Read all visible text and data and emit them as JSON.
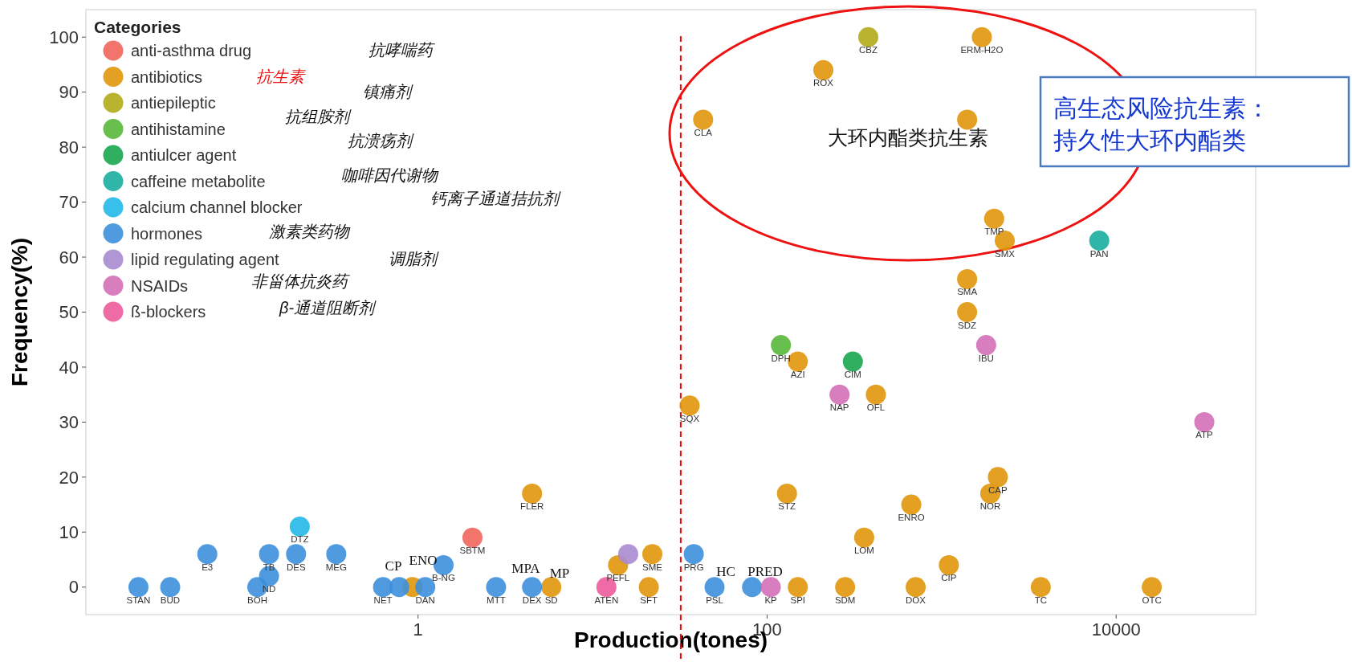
{
  "chart_data": {
    "type": "scatter",
    "xlabel": "Production(tones)",
    "ylabel": "Frequency(%)",
    "legend_title": "Categories",
    "legend": "top left",
    "marker": "circle",
    "log": "x",
    "xlim": [
      0.0125,
      63000
    ],
    "xticks": [
      1,
      100,
      10000
    ],
    "ylim": [
      -5,
      105
    ],
    "yticks": [
      0,
      10,
      20,
      30,
      40,
      50,
      60,
      70,
      80,
      90,
      100
    ],
    "ref_lines": [
      {
        "axis": "x",
        "value": 32,
        "color": "#ff0000",
        "line_style": "dashed"
      }
    ],
    "series": [
      {
        "name": "anti-asthma drug",
        "color": "#f0665c",
        "x": [
          2.05
        ],
        "values": [
          9
        ]
      },
      {
        "name": "antibiotics",
        "color": "#e0960a",
        "x": [
          0.93,
          5.8,
          4.5,
          14,
          22,
          21,
          150,
          280,
          710,
          1100,
          3700,
          16000,
          360,
          670,
          130,
          1900,
          2100,
          36,
          150,
          420,
          1400,
          1400,
          2000,
          2300,
          43,
          210,
          1700,
          1400
        ],
        "values": [
          0,
          0,
          17,
          4,
          6,
          0,
          0,
          0,
          0,
          4,
          0,
          0,
          9,
          15,
          17,
          17,
          20,
          33,
          41,
          35,
          50,
          56,
          67,
          63,
          85,
          94,
          100,
          85
        ]
      },
      {
        "name": "antiepileptic",
        "color": "#b3ab18",
        "x": [
          380
        ],
        "values": [
          100
        ]
      },
      {
        "name": "antihistamine",
        "color": "#58b83a",
        "x": [
          120
        ],
        "values": [
          44
        ]
      },
      {
        "name": "antiulcer agent",
        "color": "#1aa650",
        "x": [
          310
        ],
        "values": [
          41
        ]
      },
      {
        "name": "caffeine metabolite",
        "color": "#1aaea0",
        "x": [
          8000
        ],
        "values": [
          63
        ]
      },
      {
        "name": "calcium channel blocker",
        "color": "#22b8e8",
        "x": [
          0.21
        ],
        "values": [
          11
        ]
      },
      {
        "name": "hormones",
        "color": "#3d8fdc",
        "x": [
          0.025,
          0.038,
          0.062,
          0.14,
          0.2,
          0.12,
          0.14,
          0.34,
          0.63,
          0.78,
          1.1,
          1.4,
          2.8,
          4.5,
          38,
          50,
          82
        ],
        "values": [
          0,
          0,
          6,
          6,
          6,
          0,
          2,
          6,
          0,
          0,
          0,
          4,
          0,
          0,
          6,
          0,
          0
        ]
      },
      {
        "name": "lipid regulating agent",
        "color": "#a98bd2",
        "x": [
          16
        ],
        "values": [
          6
        ]
      },
      {
        "name": "NSAIDs",
        "color": "#d46fb6",
        "x": [
          105,
          260,
          1800,
          32000
        ],
        "values": [
          0,
          35,
          44,
          30
        ]
      },
      {
        "name": "ß-blockers",
        "color": "#ec5b9c",
        "x": [
          12
        ],
        "values": [
          0
        ]
      }
    ],
    "annotations": [
      {
        "text": "SBTM",
        "x": 2.05,
        "y": 9
      },
      {
        "text": "SD",
        "x": 5.8,
        "y": 0
      },
      {
        "text": "FLER",
        "x": 4.5,
        "y": 17
      },
      {
        "text": "PEFL",
        "x": 14,
        "y": 4
      },
      {
        "text": "SME",
        "x": 22,
        "y": 6
      },
      {
        "text": "SFT",
        "x": 21,
        "y": 0
      },
      {
        "text": "SPI",
        "x": 150,
        "y": 0
      },
      {
        "text": "SDM",
        "x": 280,
        "y": 0
      },
      {
        "text": "DOX",
        "x": 710,
        "y": 0
      },
      {
        "text": "CIP",
        "x": 1100,
        "y": 4
      },
      {
        "text": "TC",
        "x": 3700,
        "y": 0
      },
      {
        "text": "OTC",
        "x": 16000,
        "y": 0
      },
      {
        "text": "LOM",
        "x": 360,
        "y": 9
      },
      {
        "text": "ENRO",
        "x": 670,
        "y": 15
      },
      {
        "text": "STZ",
        "x": 130,
        "y": 17
      },
      {
        "text": "NOR",
        "x": 1900,
        "y": 17
      },
      {
        "text": "CAP",
        "x": 2100,
        "y": 20
      },
      {
        "text": "SQX",
        "x": 36,
        "y": 33
      },
      {
        "text": "AZI",
        "x": 150,
        "y": 41
      },
      {
        "text": "OFL",
        "x": 420,
        "y": 35
      },
      {
        "text": "SDZ",
        "x": 1400,
        "y": 50
      },
      {
        "text": "SMA",
        "x": 1400,
        "y": 56
      },
      {
        "text": "TMP",
        "x": 2000,
        "y": 67
      },
      {
        "text": "SMX",
        "x": 2300,
        "y": 63
      },
      {
        "text": "CLA",
        "x": 43,
        "y": 85
      },
      {
        "text": "ROX",
        "x": 210,
        "y": 94
      },
      {
        "text": "ERM-H2O",
        "x": 1700,
        "y": 100
      },
      {
        "text": "CBZ",
        "x": 380,
        "y": 100
      },
      {
        "text": "DPH",
        "x": 120,
        "y": 44
      },
      {
        "text": "CIM",
        "x": 310,
        "y": 41
      },
      {
        "text": "PAN",
        "x": 8000,
        "y": 63
      },
      {
        "text": "DTZ",
        "x": 0.21,
        "y": 11
      },
      {
        "text": "STAN",
        "x": 0.025,
        "y": 0
      },
      {
        "text": "BUD",
        "x": 0.038,
        "y": 0
      },
      {
        "text": "E3",
        "x": 0.062,
        "y": 6
      },
      {
        "text": "TB",
        "x": 0.14,
        "y": 6
      },
      {
        "text": "DES",
        "x": 0.2,
        "y": 6
      },
      {
        "text": "BOH",
        "x": 0.12,
        "y": 0
      },
      {
        "text": "ND",
        "x": 0.14,
        "y": 2
      },
      {
        "text": "MEG",
        "x": 0.34,
        "y": 6
      },
      {
        "text": "NET",
        "x": 0.63,
        "y": 0
      },
      {
        "text": "DAN",
        "x": 1.1,
        "y": 0
      },
      {
        "text": "B-NG",
        "x": 1.4,
        "y": 4
      },
      {
        "text": "MTT",
        "x": 2.8,
        "y": 0
      },
      {
        "text": "DEX",
        "x": 4.5,
        "y": 0
      },
      {
        "text": "PRG",
        "x": 38,
        "y": 6
      },
      {
        "text": "PSL",
        "x": 50,
        "y": 0
      },
      {
        "text": "KP",
        "x": 105,
        "y": 0
      },
      {
        "text": "NAP",
        "x": 260,
        "y": 35
      },
      {
        "text": "IBU",
        "x": 1800,
        "y": 44
      },
      {
        "text": "ATP",
        "x": 32000,
        "y": 30
      },
      {
        "text": "ATEN",
        "x": 12,
        "y": 0
      },
      "CP",
      "ENO",
      "MPA",
      "MP",
      "HC",
      "PRED",
      "抗哮喘药",
      "抗生素",
      "镇痛剂",
      "抗组胺剂",
      "抗溃疡剂",
      "咖啡因代谢物",
      "钙离子通道拮抗剂",
      "激素类药物",
      "调脂剂",
      "非甾体抗炎药",
      "β-通道阻断剂",
      "大环内酯类抗生素",
      "高生态风险抗生素：",
      "持久性大环内酯类"
    ]
  }
}
